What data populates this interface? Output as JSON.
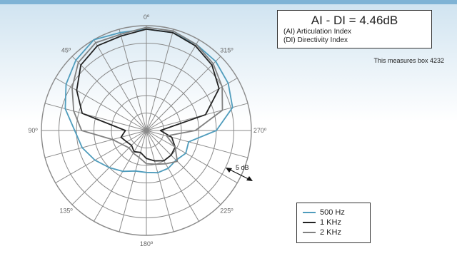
{
  "header": {
    "formula": "AI - DI = 4.46dB",
    "line1": "(AI) Articulation Index",
    "line2": "(DI) Directivity Index",
    "note": "This measures box 4232"
  },
  "chart_data": {
    "type": "polar",
    "angle_labels": [
      {
        "deg": 0,
        "label": "0º"
      },
      {
        "deg": 45,
        "label": "45º"
      },
      {
        "deg": 90,
        "label": "90º"
      },
      {
        "deg": 135,
        "label": "135º"
      },
      {
        "deg": 180,
        "label": "180º"
      },
      {
        "deg": 225,
        "label": "225º"
      },
      {
        "deg": 270,
        "label": "270º"
      },
      {
        "deg": 315,
        "label": "315º"
      }
    ],
    "scale_label": "5 dB",
    "grid": true,
    "ring_count": 6,
    "spoke_step_deg": 15,
    "angle_direction": "counterclockwise",
    "legend_position": "bottom-right",
    "series": [
      {
        "name": "500 Hz",
        "color": "#4f9cbc",
        "angles": [
          0,
          15,
          30,
          45,
          60,
          75,
          90,
          105,
          120,
          135,
          150,
          165,
          180,
          195,
          210,
          225,
          240,
          255,
          270,
          285,
          300,
          315,
          330,
          345
        ],
        "values": [
          5.8,
          5.8,
          6.0,
          5.7,
          5.3,
          4.8,
          4.1,
          3.8,
          3.4,
          3.0,
          2.7,
          2.4,
          2.4,
          2.5,
          2.5,
          2.4,
          2.6,
          2.5,
          4.0,
          5.1,
          5.4,
          5.6,
          5.7,
          5.8
        ]
      },
      {
        "name": "1 KHz",
        "color": "#222222",
        "angles": [
          0,
          15,
          30,
          45,
          60,
          75,
          90,
          105,
          120,
          135,
          150,
          165,
          180,
          195,
          210,
          225,
          240,
          255,
          270,
          285,
          300,
          315,
          330,
          345
        ],
        "values": [
          5.8,
          5.6,
          5.6,
          5.3,
          4.6,
          3.8,
          1.2,
          1.5,
          1.3,
          1.2,
          1.4,
          1.3,
          1.6,
          1.8,
          2.0,
          2.0,
          1.9,
          1.5,
          0.8,
          3.5,
          4.8,
          5.3,
          5.6,
          5.8
        ]
      },
      {
        "name": "2 KHz",
        "color": "#808080",
        "angles": [
          0,
          15,
          30,
          45,
          60,
          75,
          90,
          105,
          120,
          135,
          150,
          165,
          180,
          195,
          210,
          225,
          240,
          255,
          270,
          285,
          300,
          315,
          330,
          345
        ],
        "values": [
          5.9,
          5.7,
          5.8,
          5.5,
          4.9,
          4.3,
          3.7,
          2.0,
          1.6,
          1.4,
          1.5,
          1.6,
          1.9,
          2.0,
          2.2,
          2.5,
          1.9,
          1.2,
          2.8,
          4.5,
          5.0,
          5.4,
          5.7,
          5.9
        ]
      }
    ]
  }
}
